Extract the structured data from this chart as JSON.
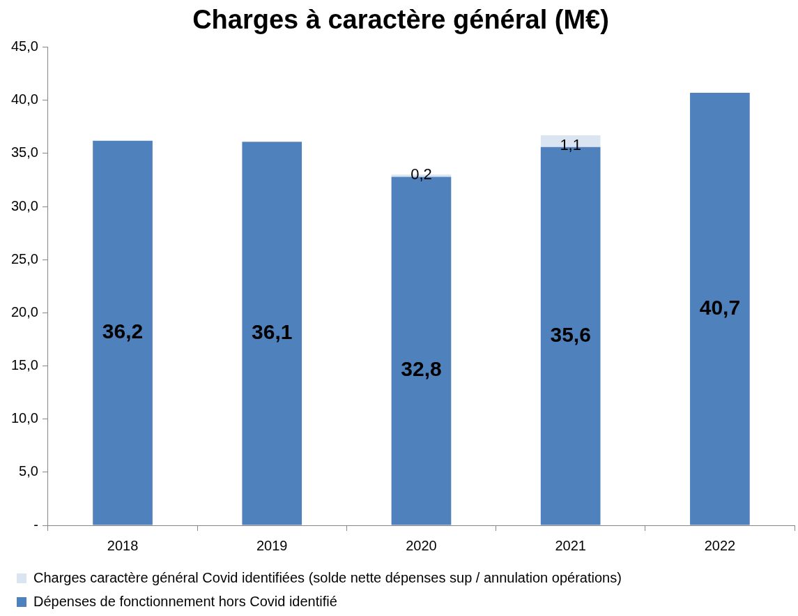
{
  "chart_data": {
    "type": "bar",
    "title": "Charges à caractère général (M€)",
    "stacked": true,
    "categories": [
      "2018",
      "2019",
      "2020",
      "2021",
      "2022"
    ],
    "series": [
      {
        "name": "Dépenses de fonctionnement hors Covid identifié",
        "color": "#4f81bd",
        "values": [
          36.2,
          36.1,
          32.8,
          35.6,
          40.7
        ],
        "value_labels": [
          "36,2",
          "36,1",
          "32,8",
          "35,6",
          "40,7"
        ]
      },
      {
        "name": "Charges caractère général Covid identifiées (solde nette dépenses sup / annulation opérations)",
        "color": "#dbe5f1",
        "values": [
          null,
          null,
          0.2,
          1.1,
          null
        ],
        "value_labels": [
          null,
          null,
          "0,2",
          "1,1",
          null
        ]
      }
    ],
    "ylim": [
      0,
      45
    ],
    "yticks": [
      {
        "value": 0,
        "label": "-"
      },
      {
        "value": 5,
        "label": "5,0"
      },
      {
        "value": 10,
        "label": "10,0"
      },
      {
        "value": 15,
        "label": "15,0"
      },
      {
        "value": 20,
        "label": "20,0"
      },
      {
        "value": 25,
        "label": "25,0"
      },
      {
        "value": 30,
        "label": "30,0"
      },
      {
        "value": 35,
        "label": "35,0"
      },
      {
        "value": 40,
        "label": "40,0"
      },
      {
        "value": 45,
        "label": "45,0"
      }
    ],
    "grid": false,
    "legend": "bottom"
  }
}
